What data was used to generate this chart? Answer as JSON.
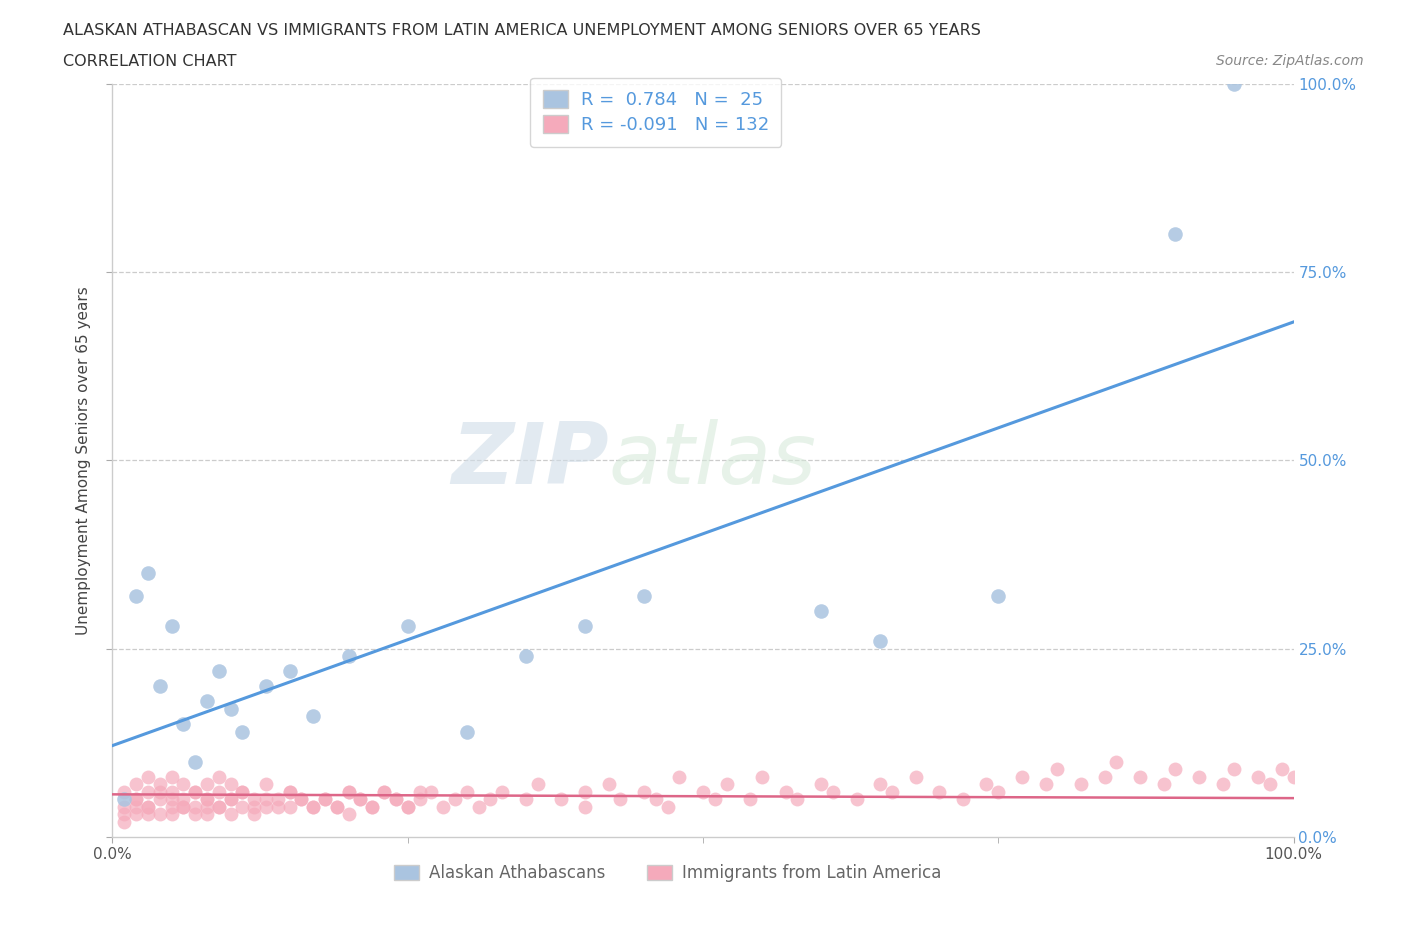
{
  "title_line1": "ALASKAN ATHABASCAN VS IMMIGRANTS FROM LATIN AMERICA UNEMPLOYMENT AMONG SENIORS OVER 65 YEARS",
  "title_line2": "CORRELATION CHART",
  "source_text": "Source: ZipAtlas.com",
  "ylabel": "Unemployment Among Seniors over 65 years",
  "watermark_zip": "ZIP",
  "watermark_atlas": "atlas",
  "blue_R": 0.784,
  "blue_N": 25,
  "pink_R": -0.091,
  "pink_N": 132,
  "blue_color": "#aac4e0",
  "pink_color": "#f5aabb",
  "blue_line_color": "#5599dd",
  "pink_line_color": "#dd6688",
  "legend_label_blue": "Alaskan Athabascans",
  "legend_label_pink": "Immigrants from Latin America",
  "xlim": [
    0,
    100
  ],
  "ylim": [
    0,
    100
  ],
  "right_ytick_vals": [
    0,
    25,
    50,
    75,
    100
  ],
  "right_yticklabels": [
    "0.0%",
    "25.0%",
    "50.0%",
    "75.0%",
    "100.0%"
  ],
  "blue_scatter_x": [
    1,
    2,
    3,
    4,
    5,
    6,
    7,
    8,
    9,
    10,
    11,
    13,
    15,
    17,
    20,
    25,
    30,
    35,
    40,
    45,
    60,
    65,
    75,
    90,
    95
  ],
  "blue_scatter_y": [
    5,
    32,
    35,
    20,
    28,
    15,
    10,
    18,
    22,
    17,
    14,
    20,
    22,
    16,
    24,
    28,
    14,
    24,
    28,
    32,
    30,
    26,
    32,
    80,
    100
  ],
  "pink_scatter_x": [
    1,
    1,
    1,
    2,
    2,
    2,
    2,
    3,
    3,
    3,
    3,
    4,
    4,
    4,
    5,
    5,
    5,
    5,
    6,
    6,
    6,
    7,
    7,
    7,
    8,
    8,
    8,
    8,
    9,
    9,
    9,
    10,
    10,
    10,
    11,
    11,
    12,
    12,
    13,
    13,
    14,
    15,
    15,
    16,
    17,
    18,
    19,
    20,
    20,
    21,
    22,
    23,
    24,
    25,
    26,
    27,
    28,
    29,
    30,
    31,
    32,
    33,
    35,
    36,
    38,
    40,
    40,
    42,
    43,
    45,
    46,
    47,
    48,
    50,
    51,
    52,
    54,
    55,
    57,
    58,
    60,
    61,
    63,
    65,
    66,
    68,
    70,
    72,
    74,
    75,
    77,
    79,
    80,
    82,
    84,
    85,
    87,
    89,
    90,
    92,
    94,
    95,
    97,
    98,
    99,
    100,
    1,
    2,
    3,
    4,
    5,
    6,
    7,
    8,
    9,
    10,
    11,
    12,
    13,
    14,
    15,
    16,
    17,
    18,
    19,
    20,
    21,
    22,
    23,
    24,
    25,
    26
  ],
  "pink_scatter_y": [
    3,
    6,
    2,
    4,
    7,
    3,
    5,
    4,
    8,
    3,
    6,
    5,
    3,
    7,
    4,
    6,
    3,
    8,
    5,
    4,
    7,
    4,
    6,
    3,
    5,
    7,
    4,
    3,
    6,
    4,
    8,
    5,
    3,
    7,
    4,
    6,
    5,
    3,
    4,
    7,
    5,
    4,
    6,
    5,
    4,
    5,
    4,
    6,
    3,
    5,
    4,
    6,
    5,
    4,
    5,
    6,
    4,
    5,
    6,
    4,
    5,
    6,
    5,
    7,
    5,
    6,
    4,
    7,
    5,
    6,
    5,
    4,
    8,
    6,
    5,
    7,
    5,
    8,
    6,
    5,
    7,
    6,
    5,
    7,
    6,
    8,
    6,
    5,
    7,
    6,
    8,
    7,
    9,
    7,
    8,
    10,
    8,
    7,
    9,
    8,
    7,
    9,
    8,
    7,
    9,
    8,
    4,
    5,
    4,
    6,
    5,
    4,
    6,
    5,
    4,
    5,
    6,
    4,
    5,
    4,
    6,
    5,
    4,
    5,
    4,
    6,
    5,
    4,
    6,
    5,
    4,
    6
  ]
}
